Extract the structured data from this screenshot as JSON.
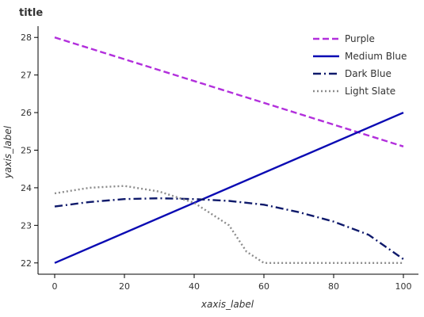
{
  "chart_data": {
    "type": "line",
    "title": "title",
    "xlabel": "xaxis_label",
    "ylabel": "yaxis_label",
    "xlim": [
      0,
      100
    ],
    "ylim": [
      21.7,
      28.3
    ],
    "x_ticks": [
      0,
      20,
      40,
      60,
      80,
      100
    ],
    "y_ticks": [
      22,
      23,
      24,
      25,
      26,
      27,
      28
    ],
    "grid": false,
    "legend_placement": "top-right",
    "series": [
      {
        "name": "Purple",
        "color": "#b22fdc",
        "dash": "8,4",
        "x": [
          0,
          100
        ],
        "y": [
          28.0,
          25.1
        ]
      },
      {
        "name": "Medium Blue",
        "color": "#0b0bb3",
        "dash": "",
        "x": [
          0,
          100
        ],
        "y": [
          22.0,
          26.0
        ]
      },
      {
        "name": "Dark Blue",
        "color": "#0f1a6b",
        "dash": "10,4,2,4",
        "x": [
          0,
          10,
          20,
          30,
          40,
          50,
          60,
          70,
          80,
          90,
          100
        ],
        "y": [
          23.5,
          23.62,
          23.7,
          23.72,
          23.7,
          23.65,
          23.55,
          23.35,
          23.1,
          22.75,
          22.1
        ]
      },
      {
        "name": "Light Slate",
        "color": "#8c8c8c",
        "dash": "2,3",
        "x": [
          0,
          10,
          20,
          30,
          40,
          50,
          55,
          60,
          70,
          80,
          90,
          100
        ],
        "y": [
          23.85,
          24.0,
          24.05,
          23.9,
          23.6,
          23.0,
          22.3,
          22.0,
          22.0,
          22.0,
          22.0,
          22.0
        ]
      }
    ]
  }
}
